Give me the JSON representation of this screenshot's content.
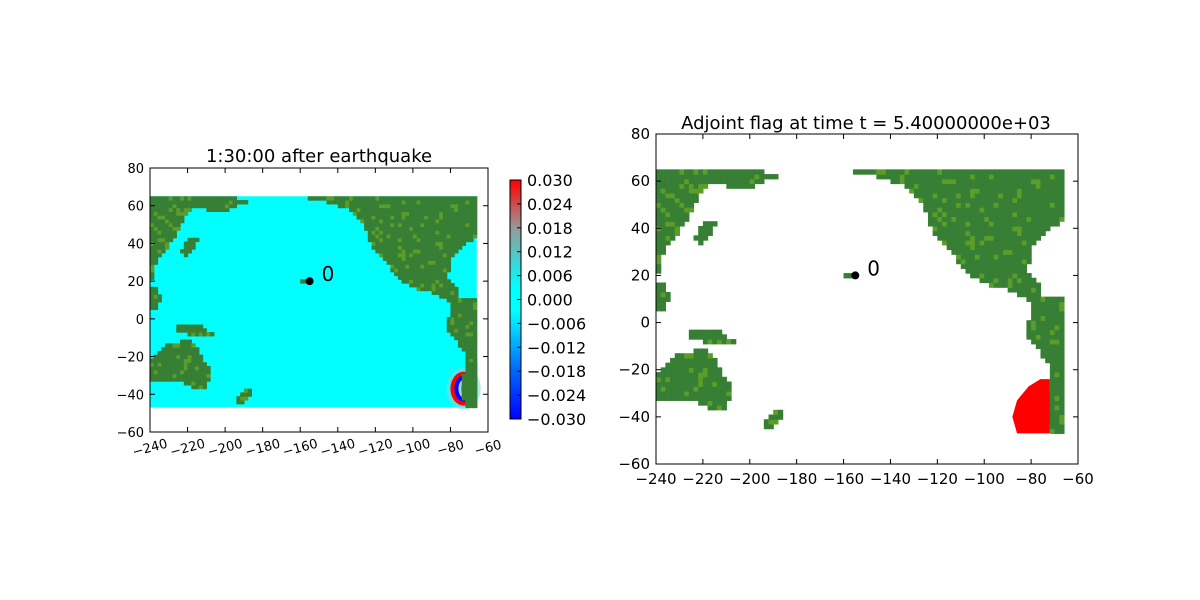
{
  "colors": {
    "ocean": "#00ffff",
    "land_dark": "#367f34",
    "land_light": "#5c9d2a",
    "wave_red": "#ff0000",
    "wave_blue": "#0000ff",
    "flag": "#ff0000"
  },
  "chart_data": [
    {
      "type": "heatmap",
      "title": "1:30:00 after earthquake",
      "xlabel": "",
      "ylabel": "",
      "xlim": [
        -240,
        -60
      ],
      "ylim": [
        -60,
        80
      ],
      "xticks": [
        -240,
        -220,
        -200,
        -180,
        -160,
        -140,
        -120,
        -100,
        -80,
        -60
      ],
      "yticks": [
        -60,
        -40,
        -20,
        0,
        20,
        40,
        60,
        80
      ],
      "grid": false,
      "data_extent": {
        "lon": [
          -240,
          -66
        ],
        "lat": [
          -47,
          65
        ]
      },
      "gauge": {
        "label": "0",
        "lon": -155,
        "lat": 20
      },
      "colorbar": {
        "min": -0.03,
        "max": 0.03,
        "ticks": [
          "0.030",
          "0.024",
          "0.018",
          "0.012",
          "0.006",
          "0.000",
          "−0.006",
          "−0.012",
          "−0.018",
          "−0.024",
          "−0.030"
        ]
      }
    },
    {
      "type": "heatmap",
      "title": "Adjoint flag at time t = 5.40000000e+03",
      "xlabel": "",
      "ylabel": "",
      "xlim": [
        -240,
        -60
      ],
      "ylim": [
        -60,
        80
      ],
      "xticks": [
        -240,
        -220,
        -200,
        -180,
        -160,
        -140,
        -120,
        -100,
        -80,
        -60
      ],
      "yticks": [
        -60,
        -40,
        -20,
        0,
        20,
        40,
        60,
        80
      ],
      "grid": false,
      "data_extent": {
        "lon": [
          -240,
          -66
        ],
        "lat": [
          -47,
          65
        ]
      },
      "gauge": {
        "label": "0",
        "lon": -155,
        "lat": 20
      }
    }
  ]
}
